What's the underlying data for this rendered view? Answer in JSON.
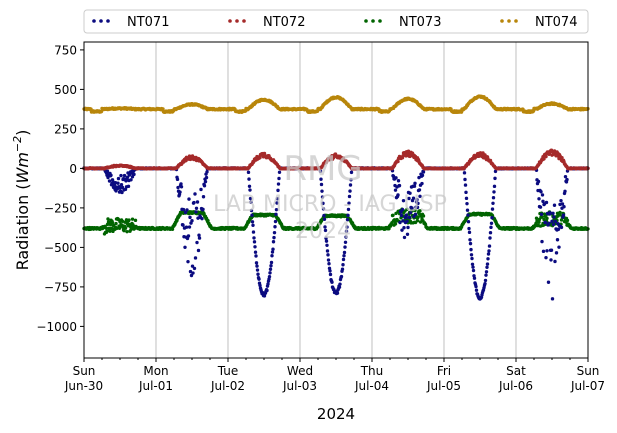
{
  "chart_data": {
    "type": "scatter",
    "title": "",
    "xlabel": "2024",
    "ylabel": "Radiation (Wm⁻²)",
    "x_range_days": [
      0,
      7
    ],
    "ylim": [
      -1200,
      800
    ],
    "yticks": [
      -1000,
      -750,
      -500,
      -250,
      0,
      250,
      500,
      750
    ],
    "ytick_labels": [
      "−1000",
      "−750",
      "−500",
      "−250",
      "0",
      "250",
      "500",
      "750"
    ],
    "xtick_labels": [
      {
        "day": "Sun",
        "date": "Jun-30"
      },
      {
        "day": "Mon",
        "date": "Jul-01"
      },
      {
        "day": "Tue",
        "date": "Jul-02"
      },
      {
        "day": "Wed",
        "date": "Jul-03"
      },
      {
        "day": "Thu",
        "date": "Jul-04"
      },
      {
        "day": "Fri",
        "date": "Jul-05"
      },
      {
        "day": "Sat",
        "date": "Jul-06"
      },
      {
        "day": "Sun",
        "date": "Jul-07"
      }
    ],
    "grid": "vertical",
    "legend_position": "top",
    "watermark": [
      "RMG",
      "LAB MICRO - IAG USP",
      "2024"
    ],
    "series": [
      {
        "name": "NT071",
        "color": "#0b0b80",
        "baseline": 0,
        "daily_min": [
          -160,
          -680,
          -800,
          -790,
          -500,
          -820,
          -860
        ]
      },
      {
        "name": "NT072",
        "color": "#a52a2a",
        "baseline": 0,
        "daily_max": [
          20,
          80,
          100,
          90,
          110,
          100,
          120
        ]
      },
      {
        "name": "NT073",
        "color": "#006400",
        "baseline": -380,
        "daily_peak": [
          -360,
          -280,
          -295,
          -300,
          -300,
          -290,
          -320
        ]
      },
      {
        "name": "NT074",
        "color": "#b8860b",
        "baseline": 375,
        "daily_peak": [
          380,
          405,
          435,
          450,
          440,
          455,
          410
        ]
      }
    ]
  }
}
